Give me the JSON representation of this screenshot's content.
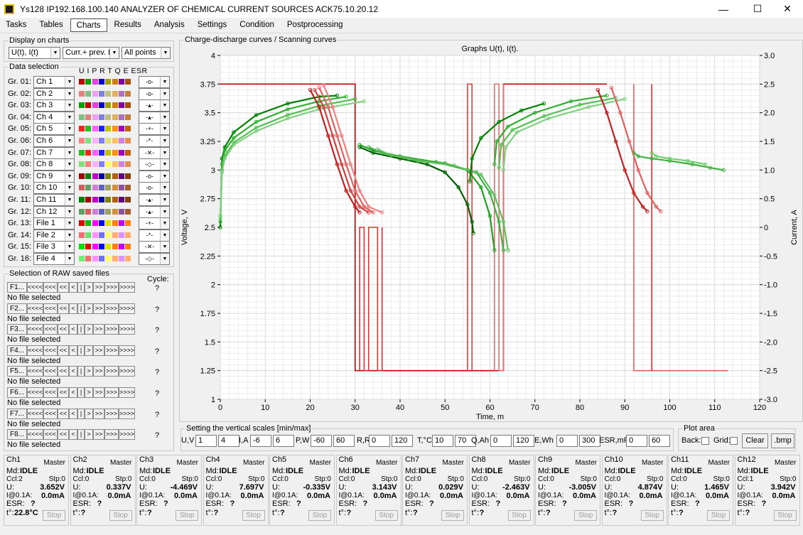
{
  "window": {
    "title": "Ys128 IP192.168.100.140 ANALYZER OF CHEMICAL CURRENT SOURCES ACK75.10.20.12",
    "minimize": "—",
    "maximize": "☐",
    "close": "✕"
  },
  "menu": [
    "Tasks",
    "Tables",
    "Charts",
    "Results",
    "Analysis",
    "Settings",
    "Condition",
    "Postprocessing"
  ],
  "display": {
    "label": "Display on charts",
    "combo1": "U(t), I(t)",
    "combo2": "Curr.+ prev. L",
    "combo3": "All points"
  },
  "data_selection": {
    "label": "Data selection",
    "header": "U I P R T Q E ESR",
    "rows": [
      {
        "g": "Gr. 01:",
        "ch": "Ch 1",
        "m": "-o-"
      },
      {
        "g": "Gr. 02:",
        "ch": "Ch 2",
        "m": "-o-"
      },
      {
        "g": "Gr. 03:",
        "ch": "Ch 3",
        "m": "-▴-"
      },
      {
        "g": "Gr. 04:",
        "ch": "Ch 4",
        "m": "-▴-"
      },
      {
        "g": "Gr. 05:",
        "ch": "Ch 5",
        "m": "-+-"
      },
      {
        "g": "Gr. 06:",
        "ch": "Ch 6",
        "m": "-*-"
      },
      {
        "g": "Gr. 07:",
        "ch": "Ch 7",
        "m": "-✕-"
      },
      {
        "g": "Gr. 08:",
        "ch": "Ch 8",
        "m": "-◇-"
      },
      {
        "g": "Gr. 09:",
        "ch": "Ch 9",
        "m": "-o-"
      },
      {
        "g": "Gr. 10:",
        "ch": "Ch 10",
        "m": "-o-"
      },
      {
        "g": "Gr. 11:",
        "ch": "Ch 11",
        "m": "-▴-"
      },
      {
        "g": "Gr. 12:",
        "ch": "Ch 12",
        "m": "-▴-"
      },
      {
        "g": "Gr. 13:",
        "ch": "File 1",
        "m": "-+-"
      },
      {
        "g": "Gr. 14:",
        "ch": "File 2",
        "m": "-*-"
      },
      {
        "g": "Gr. 15:",
        "ch": "File 3",
        "m": "-✕-"
      },
      {
        "g": "Gr. 16:",
        "ch": "File 4",
        "m": "-◇-"
      }
    ],
    "colors": [
      [
        "#c00000",
        "#00a000",
        "#e040e0",
        "#0000d0",
        "#a0a000",
        "#d08000",
        "#8000a0",
        "#a05000"
      ],
      [
        "#e08080",
        "#80c080",
        "#f0a0f0",
        "#8080e0",
        "#c0c080",
        "#e0b060",
        "#b070c0",
        "#c08040"
      ],
      [
        "#00a000",
        "#c00000",
        "#e040e0",
        "#0000d0",
        "#a0a000",
        "#d08000",
        "#8000a0",
        "#a05000"
      ],
      [
        "#80c080",
        "#e08080",
        "#f0a0f0",
        "#8080e0",
        "#c0c080",
        "#e0b060",
        "#b070c0",
        "#c08040"
      ],
      [
        "#ff2020",
        "#20c020",
        "#ff60ff",
        "#2020ff",
        "#c0c000",
        "#ff9000",
        "#a000c0",
        "#c06000"
      ],
      [
        "#ff8080",
        "#80e080",
        "#ffb0ff",
        "#8080ff",
        "#e0e080",
        "#ffc060",
        "#d080e0",
        "#e09050"
      ],
      [
        "#20c020",
        "#ff2020",
        "#ff60ff",
        "#2020ff",
        "#c0c000",
        "#ff9000",
        "#a000c0",
        "#c06000"
      ],
      [
        "#80e080",
        "#ff8080",
        "#ffb0ff",
        "#8080ff",
        "#ffff60",
        "#ffc060",
        "#d080e0",
        "#e09050"
      ],
      [
        "#a00000",
        "#008000",
        "#c000c0",
        "#0000a0",
        "#808000",
        "#b06000",
        "#600080",
        "#804000"
      ],
      [
        "#d06060",
        "#60a060",
        "#d080d0",
        "#6060c0",
        "#a0a060",
        "#d09040",
        "#9050a0",
        "#a06030"
      ],
      [
        "#008000",
        "#a00000",
        "#c000c0",
        "#0000a0",
        "#808000",
        "#b06000",
        "#600080",
        "#804000"
      ],
      [
        "#60a060",
        "#d06060",
        "#d080d0",
        "#6060c0",
        "#a0a060",
        "#d09040",
        "#9050a0",
        "#a06030"
      ],
      [
        "#e00000",
        "#00c000",
        "#ff00ff",
        "#0000ff",
        "#e0e000",
        "#ff8000",
        "#c000ff",
        "#ff8000"
      ],
      [
        "#f07070",
        "#70e070",
        "#ff90ff",
        "#7070ff",
        "#ffff70",
        "#ffb070",
        "#e090ff",
        "#ffb070"
      ],
      [
        "#00e000",
        "#e00000",
        "#ff00ff",
        "#0000ff",
        "#e0e000",
        "#ff8000",
        "#c000ff",
        "#ff8000"
      ],
      [
        "#70f070",
        "#f07070",
        "#ff90ff",
        "#7070ff",
        "#ffff70",
        "#ffb070",
        "#e090ff",
        "#ffb070"
      ]
    ]
  },
  "raw_files": {
    "label": "Selection of RAW saved files",
    "cycle_label": "Cycle:",
    "nav": [
      "<<<<",
      "<<<",
      "<<",
      "<",
      "|",
      ">",
      ">>",
      ">>>",
      ">>>>"
    ],
    "files": [
      {
        "name": "F1...",
        "status": "No file selected",
        "cycle": "?"
      },
      {
        "name": "F2...",
        "status": "No file selected",
        "cycle": "?"
      },
      {
        "name": "F3...",
        "status": "No file selected",
        "cycle": "?"
      },
      {
        "name": "F4...",
        "status": "No file selected",
        "cycle": "?"
      },
      {
        "name": "F5...",
        "status": "No file selected",
        "cycle": "?"
      },
      {
        "name": "F6...",
        "status": "No file selected",
        "cycle": "?"
      },
      {
        "name": "F7...",
        "status": "No file selected",
        "cycle": "?"
      },
      {
        "name": "F8...",
        "status": "No file selected",
        "cycle": "?"
      }
    ]
  },
  "chart_group": {
    "label": "Charge-discharge curves / Scanning curves"
  },
  "chart_data": {
    "type": "line",
    "title": "Graphs U(t), I(t).",
    "xlabel": "Time, m",
    "ylabel": "Voltage, V",
    "y2label": "Current, A",
    "xlim": [
      0,
      120
    ],
    "ylim": [
      1,
      4
    ],
    "y2lim": [
      -3.0,
      3.0
    ],
    "xticks": [
      "0",
      "10",
      "20",
      "30",
      "40",
      "50",
      "60",
      "70",
      "80",
      "90",
      "100",
      "110",
      "120"
    ],
    "yticks": [
      "1",
      "1.25",
      "1.5",
      "1.75",
      "2",
      "2.25",
      "2.5",
      "2.75",
      "3",
      "3.25",
      "3.5",
      "3.75",
      "4"
    ],
    "y2ticks": [
      "-3.0",
      "-2.5",
      "-2.0",
      "-1.5",
      "-1.0",
      "-0.5",
      "0",
      "0.5",
      "1.0",
      "1.5",
      "2.0",
      "2.5",
      "3.0"
    ],
    "grid": true,
    "series": [
      {
        "axis": "left",
        "color": "#008000",
        "x": [
          0,
          0.4,
          1,
          3,
          8,
          15,
          22,
          26
        ],
        "y": [
          2.5,
          3.1,
          3.2,
          3.33,
          3.48,
          3.58,
          3.64,
          3.65
        ]
      },
      {
        "axis": "left",
        "color": "#30b030",
        "x": [
          0,
          0.4,
          1,
          3,
          8,
          15,
          22,
          28
        ],
        "y": [
          2.55,
          3.05,
          3.17,
          3.28,
          3.42,
          3.53,
          3.6,
          3.64
        ]
      },
      {
        "axis": "left",
        "color": "#50c050",
        "x": [
          0,
          0.4,
          1,
          3,
          8,
          15,
          22,
          30
        ],
        "y": [
          2.6,
          3.0,
          3.12,
          3.24,
          3.37,
          3.48,
          3.56,
          3.62
        ]
      },
      {
        "axis": "left",
        "color": "#80d080",
        "x": [
          0,
          0.4,
          1,
          3,
          8,
          15,
          22,
          32
        ],
        "y": [
          2.58,
          2.98,
          3.1,
          3.22,
          3.34,
          3.45,
          3.53,
          3.6
        ]
      },
      {
        "axis": "left",
        "color": "#c02020",
        "x": [
          20,
          22,
          24,
          26,
          28,
          30,
          31
        ],
        "y": [
          3.7,
          3.55,
          3.3,
          3.05,
          2.82,
          2.68,
          2.63
        ]
      },
      {
        "axis": "left",
        "color": "#d04040",
        "x": [
          21,
          23,
          25,
          27,
          29,
          31,
          33
        ],
        "y": [
          3.7,
          3.55,
          3.3,
          3.05,
          2.82,
          2.68,
          2.63
        ]
      },
      {
        "axis": "left",
        "color": "#e06060",
        "x": [
          22,
          24,
          26,
          28,
          30,
          32,
          34
        ],
        "y": [
          3.72,
          3.55,
          3.3,
          3.05,
          2.82,
          2.68,
          2.63
        ]
      },
      {
        "axis": "left",
        "color": "#f08080",
        "x": [
          23,
          25,
          27,
          29,
          31,
          33,
          36
        ],
        "y": [
          3.74,
          3.55,
          3.3,
          3.05,
          2.82,
          2.68,
          2.63
        ]
      },
      {
        "axis": "left",
        "color": "#006000",
        "x": [
          31,
          34,
          40,
          46,
          50,
          53,
          55,
          56,
          56.3
        ],
        "y": [
          3.2,
          3.15,
          3.1,
          3.05,
          2.98,
          2.85,
          2.7,
          2.55,
          2.45
        ]
      },
      {
        "axis": "left",
        "color": "#20a020",
        "x": [
          31,
          34,
          40,
          48,
          55,
          58,
          60,
          61
        ],
        "y": [
          3.22,
          3.17,
          3.12,
          3.07,
          3.0,
          2.85,
          2.6,
          2.3
        ]
      },
      {
        "axis": "left",
        "color": "#40b040",
        "x": [
          33,
          36,
          42,
          50,
          57,
          60,
          62,
          63
        ],
        "y": [
          3.2,
          3.15,
          3.1,
          3.06,
          2.98,
          2.8,
          2.55,
          2.3
        ]
      },
      {
        "axis": "left",
        "color": "#60c060",
        "x": [
          35,
          38,
          44,
          52,
          58,
          61,
          63,
          64
        ],
        "y": [
          3.18,
          3.13,
          3.08,
          3.04,
          2.96,
          2.78,
          2.55,
          2.3
        ]
      },
      {
        "axis": "left",
        "color": "#008000",
        "x": [
          55.5,
          56,
          58,
          62,
          67,
          72
        ],
        "y": [
          2.9,
          3.1,
          3.28,
          3.42,
          3.52,
          3.58
        ]
      },
      {
        "axis": "left",
        "color": "#30b030",
        "x": [
          61,
          61.5,
          64,
          70,
          78,
          86
        ],
        "y": [
          3.05,
          3.25,
          3.38,
          3.5,
          3.6,
          3.65
        ]
      },
      {
        "axis": "left",
        "color": "#50c050",
        "x": [
          62,
          62.5,
          65,
          72,
          80,
          88
        ],
        "y": [
          3.02,
          3.22,
          3.35,
          3.47,
          3.57,
          3.63
        ]
      },
      {
        "axis": "left",
        "color": "#80d080",
        "x": [
          63,
          63.5,
          66,
          73,
          82,
          90
        ],
        "y": [
          3.0,
          3.2,
          3.33,
          3.45,
          3.55,
          3.62
        ]
      },
      {
        "axis": "left",
        "color": "#c02020",
        "x": [
          84,
          86,
          88,
          90,
          92,
          94,
          95
        ],
        "y": [
          3.7,
          3.5,
          3.25,
          3.0,
          2.8,
          2.68,
          2.64
        ]
      },
      {
        "axis": "left",
        "color": "#e06060",
        "x": [
          87,
          89,
          91,
          93,
          95,
          97,
          98
        ],
        "y": [
          3.72,
          3.5,
          3.25,
          3.0,
          2.8,
          2.68,
          2.64
        ]
      },
      {
        "axis": "left",
        "color": "#40b040",
        "x": [
          92,
          93,
          96,
          100,
          105,
          109,
          112
        ],
        "y": [
          3.15,
          3.12,
          3.1,
          3.08,
          3.05,
          3.02,
          3.0
        ]
      },
      {
        "axis": "left",
        "color": "#70d070",
        "x": [
          96,
          97,
          100,
          104,
          108
        ],
        "y": [
          3.15,
          3.12,
          3.1,
          3.08,
          3.05
        ]
      }
    ],
    "current_series": [
      {
        "axis": "right",
        "color": "#c00000",
        "x": [
          0,
          29,
          29,
          30,
          30,
          63,
          63,
          64,
          64,
          86,
          86
        ],
        "y": [
          2.5,
          2.5,
          2.5,
          2.5,
          -2.5,
          -2.5,
          2.5,
          2.5,
          2.5,
          2.5,
          2.5
        ]
      },
      {
        "axis": "right",
        "color": "#e03030",
        "x": [
          31,
          31,
          32,
          32,
          33,
          33,
          35,
          35,
          36,
          36
        ],
        "y": [
          -2.5,
          0,
          0,
          -2.5,
          -2.5,
          0,
          0,
          -2.5,
          -2.5,
          0
        ]
      },
      {
        "axis": "right",
        "color": "#e04040",
        "x": [
          55,
          55,
          56,
          56
        ],
        "y": [
          -2.5,
          2.5,
          2.5,
          -2.5
        ]
      },
      {
        "axis": "right",
        "color": "#e07070",
        "x": [
          61,
          61,
          62,
          62,
          63,
          63
        ],
        "y": [
          -2.5,
          2.5,
          2.5,
          -2.5,
          -2.5,
          2.5
        ]
      },
      {
        "axis": "right",
        "color": "#e06060",
        "x": [
          92,
          92,
          96,
          96,
          113
        ],
        "y": [
          2.5,
          -2.5,
          -2.5,
          -2.5,
          -2.5
        ]
      },
      {
        "axis": "right",
        "color": "#d03030",
        "x": [
          96,
          96
        ],
        "y": [
          2.5,
          -2.5
        ]
      }
    ]
  },
  "scales": {
    "label": "Setting the vertical scales [min/max]",
    "fields": [
      {
        "name": "U,V",
        "min": "1",
        "max": "4"
      },
      {
        "name": "I,A",
        "min": "-6",
        "max": "6"
      },
      {
        "name": "P,W",
        "min": "-60",
        "max": "60"
      },
      {
        "name": "R,R",
        "min": "0",
        "max": "120"
      },
      {
        "name": "T,°C",
        "min": "10",
        "max": "70"
      },
      {
        "name": "Q,Ah",
        "min": "0",
        "max": "120"
      },
      {
        "name": "E,Wh",
        "min": "0",
        "max": "300"
      },
      {
        "name": "ESR,mR",
        "min": "0",
        "max": "60"
      }
    ]
  },
  "plot_area": {
    "label": "Plot area",
    "back": "Back:",
    "grid": "Grid:",
    "clear": "Clear",
    "bmp": ".bmp"
  },
  "channels": [
    {
      "ch": "Ch1",
      "master": "Master",
      "md": "Md:",
      "mode": "IDLE",
      "ccl": "Ccl:2",
      "stp": "Stp:0",
      "u_lbl": "U:",
      "u": "3.652V",
      "i_lbl": "I@0.1A:",
      "i": "0.0mA",
      "esr_lbl": "ESR:",
      "esr": "?",
      "t_lbl": "t°:",
      "t": "22.8°C",
      "stop": "Stop"
    },
    {
      "ch": "Ch2",
      "master": "Master",
      "md": "Md:",
      "mode": "IDLE",
      "ccl": "Ccl:0",
      "stp": "Stp:0",
      "u_lbl": "U:",
      "u": "0.337V",
      "i_lbl": "I@0.1A:",
      "i": "0.0mA",
      "esr_lbl": "ESR:",
      "esr": "?",
      "t_lbl": "t°:",
      "t": "?",
      "stop": "Stop"
    },
    {
      "ch": "Ch3",
      "master": "Master",
      "md": "Md:",
      "mode": "IDLE",
      "ccl": "Ccl:0",
      "stp": "Stp:0",
      "u_lbl": "U:",
      "u": "-4.469V",
      "i_lbl": "I@0.1A:",
      "i": "0.0mA",
      "esr_lbl": "ESR:",
      "esr": "?",
      "t_lbl": "t°:",
      "t": "?",
      "stop": "Stop"
    },
    {
      "ch": "Ch4",
      "master": "Master",
      "md": "Md:",
      "mode": "IDLE",
      "ccl": "Ccl:0",
      "stp": "Stp:0",
      "u_lbl": "U:",
      "u": "7.697V",
      "i_lbl": "I@0.1A:",
      "i": "0.0mA",
      "esr_lbl": "ESR:",
      "esr": "?",
      "t_lbl": "t°:",
      "t": "?",
      "stop": "Stop"
    },
    {
      "ch": "Ch5",
      "master": "Master",
      "md": "Md:",
      "mode": "IDLE",
      "ccl": "Ccl:0",
      "stp": "Stp:0",
      "u_lbl": "U:",
      "u": "-0.335V",
      "i_lbl": "I@0.1A:",
      "i": "0.0mA",
      "esr_lbl": "ESR:",
      "esr": "?",
      "t_lbl": "t°:",
      "t": "?",
      "stop": "Stop"
    },
    {
      "ch": "Ch6",
      "master": "Master",
      "md": "Md:",
      "mode": "IDLE",
      "ccl": "Ccl:0",
      "stp": "Stp:0",
      "u_lbl": "U:",
      "u": "3.143V",
      "i_lbl": "I@0.1A:",
      "i": "0.0mA",
      "esr_lbl": "ESR:",
      "esr": "?",
      "t_lbl": "t°:",
      "t": "?",
      "stop": "Stop"
    },
    {
      "ch": "Ch7",
      "master": "Master",
      "md": "Md:",
      "mode": "IDLE",
      "ccl": "Ccl:0",
      "stp": "Stp:0",
      "u_lbl": "U:",
      "u": "0.029V",
      "i_lbl": "I@0.1A:",
      "i": "0.0mA",
      "esr_lbl": "ESR:",
      "esr": "?",
      "t_lbl": "t°:",
      "t": "?",
      "stop": "Stop"
    },
    {
      "ch": "Ch8",
      "master": "Master",
      "md": "Md:",
      "mode": "IDLE",
      "ccl": "Ccl:0",
      "stp": "Stp:0",
      "u_lbl": "U:",
      "u": "-2.463V",
      "i_lbl": "I@0.1A:",
      "i": "0.0mA",
      "esr_lbl": "ESR:",
      "esr": "?",
      "t_lbl": "t°:",
      "t": "?",
      "stop": "Stop"
    },
    {
      "ch": "Ch9",
      "master": "Master",
      "md": "Md:",
      "mode": "IDLE",
      "ccl": "Ccl:0",
      "stp": "Stp:0",
      "u_lbl": "U:",
      "u": "-3.005V",
      "i_lbl": "I@0.1A:",
      "i": "0.0mA",
      "esr_lbl": "ESR:",
      "esr": "?",
      "t_lbl": "t°:",
      "t": "?",
      "stop": "Stop"
    },
    {
      "ch": "Ch10",
      "master": "Master",
      "md": "Md:",
      "mode": "IDLE",
      "ccl": "Ccl:0",
      "stp": "Stp:0",
      "u_lbl": "U:",
      "u": "4.874V",
      "i_lbl": "I@0.1A:",
      "i": "0.0mA",
      "esr_lbl": "ESR:",
      "esr": "?",
      "t_lbl": "t°:",
      "t": "?",
      "stop": "Stop"
    },
    {
      "ch": "Ch11",
      "master": "Master",
      "md": "Md:",
      "mode": "IDLE",
      "ccl": "Ccl:0",
      "stp": "Stp:0",
      "u_lbl": "U:",
      "u": "1.465V",
      "i_lbl": "I@0.1A:",
      "i": "0.0mA",
      "esr_lbl": "ESR:",
      "esr": "?",
      "t_lbl": "t°:",
      "t": "?",
      "stop": "Stop"
    },
    {
      "ch": "Ch12",
      "master": "Master",
      "md": "Md:",
      "mode": "IDLE",
      "ccl": "Ccl:1",
      "stp": "Stp:0",
      "u_lbl": "U:",
      "u": "3.942V",
      "i_lbl": "I@0.1A:",
      "i": "0.0mA",
      "esr_lbl": "ESR:",
      "esr": "?",
      "t_lbl": "t°:",
      "t": "?",
      "stop": "Stop"
    }
  ]
}
